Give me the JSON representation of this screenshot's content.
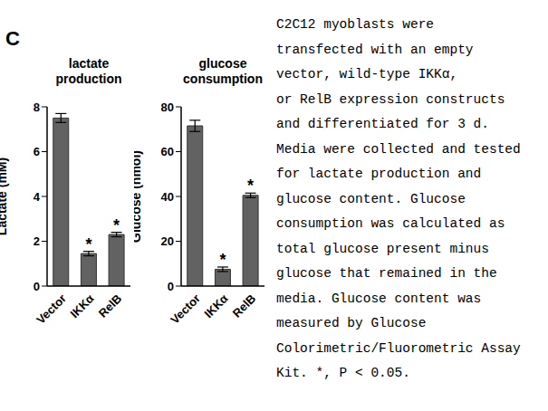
{
  "panel": "C",
  "caption": [
    "C2C12 myoblasts were",
    "transfected with an empty",
    "vector, wild-type IKKα,",
    "or RelB expression constructs",
    "and differentiated for 3 d.",
    "Media were collected and tested",
    "for lactate production and",
    "glucose content. Glucose",
    "consumption was calculated as",
    "total glucose present minus",
    "glucose that remained in the",
    "media. Glucose content was",
    "measured by Glucose",
    "Colorimetric/Fluorometric Assay",
    "Kit. *, P < 0.05."
  ],
  "chart_data": [
    {
      "type": "bar",
      "title": "lactate production",
      "y_label": "Lactate (mM)",
      "categories": [
        "Vector",
        "IKKα",
        "RelB"
      ],
      "values": [
        7.5,
        1.45,
        2.3
      ],
      "errors": [
        0.2,
        0.1,
        0.1
      ],
      "annotations": [
        {
          "category": "IKKα",
          "text": "*"
        },
        {
          "category": "RelB",
          "text": "*"
        }
      ],
      "color": "#626262",
      "ylim": [
        0,
        8
      ],
      "yticks": [
        0,
        2,
        4,
        6,
        8
      ],
      "grid": false
    },
    {
      "type": "bar",
      "title": "glucose consumption",
      "y_label": "Glucose (nmol)",
      "categories": [
        "Vector",
        "IKKα",
        "RelB"
      ],
      "values": [
        71.5,
        7.5,
        40.5
      ],
      "errors": [
        2.5,
        1,
        1
      ],
      "annotations": [
        {
          "category": "IKKα",
          "text": "*"
        },
        {
          "category": "RelB",
          "text": "*"
        }
      ],
      "color": "#626262",
      "ylim": [
        0,
        80
      ],
      "yticks": [
        0,
        20,
        40,
        60,
        80
      ],
      "grid": false
    }
  ]
}
